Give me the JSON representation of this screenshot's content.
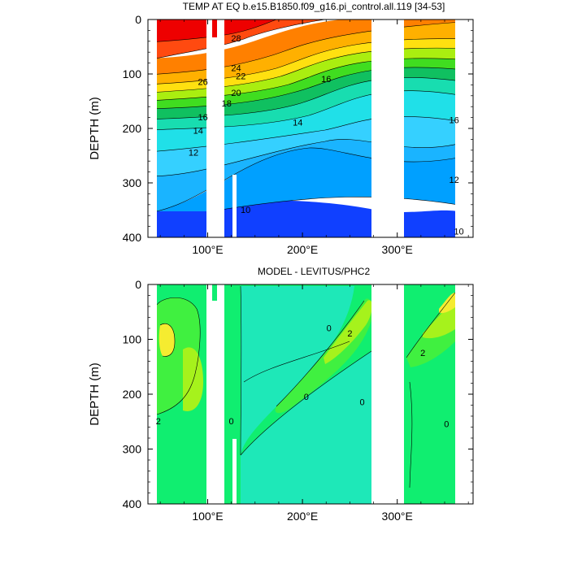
{
  "chart_data": [
    {
      "type": "heatmap",
      "title": "TEMP AT EQ b.e15.B1850.f09_g16.pi_control.all.119 [34-53]",
      "ylabel": "DEPTH (m)",
      "ylim": [
        0,
        400
      ],
      "y_ticks": [
        "0",
        "100",
        "200",
        "300",
        "400"
      ],
      "xlim": [
        37,
        380
      ],
      "x_ticks": [
        100,
        200,
        300
      ],
      "x_tick_labels": [
        "100°E",
        "200°E",
        "300°E"
      ],
      "contour_labels": [
        {
          "text": "28",
          "x": 130,
          "depth": 40
        },
        {
          "text": "26",
          "x": 95,
          "depth": 120
        },
        {
          "text": "24",
          "x": 130,
          "depth": 95
        },
        {
          "text": "22",
          "x": 135,
          "depth": 110
        },
        {
          "text": "20",
          "x": 130,
          "depth": 140
        },
        {
          "text": "18",
          "x": 120,
          "depth": 160
        },
        {
          "text": "16",
          "x": 225,
          "depth": 115
        },
        {
          "text": "16",
          "x": 95,
          "depth": 185
        },
        {
          "text": "16",
          "x": 360,
          "depth": 190
        },
        {
          "text": "14",
          "x": 90,
          "depth": 210
        },
        {
          "text": "14",
          "x": 195,
          "depth": 195
        },
        {
          "text": "12",
          "x": 85,
          "depth": 250
        },
        {
          "text": "12",
          "x": 360,
          "depth": 300
        },
        {
          "text": "10",
          "x": 140,
          "depth": 355
        },
        {
          "text": "10",
          "x": 365,
          "depth": 395
        }
      ]
    },
    {
      "type": "heatmap",
      "title": "MODEL - LEVITUS/PHC2",
      "ylabel": "DEPTH (m)",
      "ylim": [
        0,
        400
      ],
      "y_ticks": [
        "0",
        "100",
        "200",
        "300",
        "400"
      ],
      "xlim": [
        37,
        380
      ],
      "x_ticks": [
        100,
        200,
        300
      ],
      "x_tick_labels": [
        "100°E",
        "200°E",
        "300°E"
      ],
      "contour_labels": [
        {
          "text": "2",
          "x": 48,
          "depth": 255
        },
        {
          "text": "0",
          "x": 125,
          "depth": 255
        },
        {
          "text": "0",
          "x": 228,
          "depth": 85
        },
        {
          "text": "2",
          "x": 250,
          "depth": 95
        },
        {
          "text": "2",
          "x": 327,
          "depth": 130
        },
        {
          "text": "0",
          "x": 204,
          "depth": 210
        },
        {
          "text": "0",
          "x": 352,
          "depth": 260
        },
        {
          "text": "0",
          "x": 263,
          "depth": 220
        }
      ]
    }
  ]
}
